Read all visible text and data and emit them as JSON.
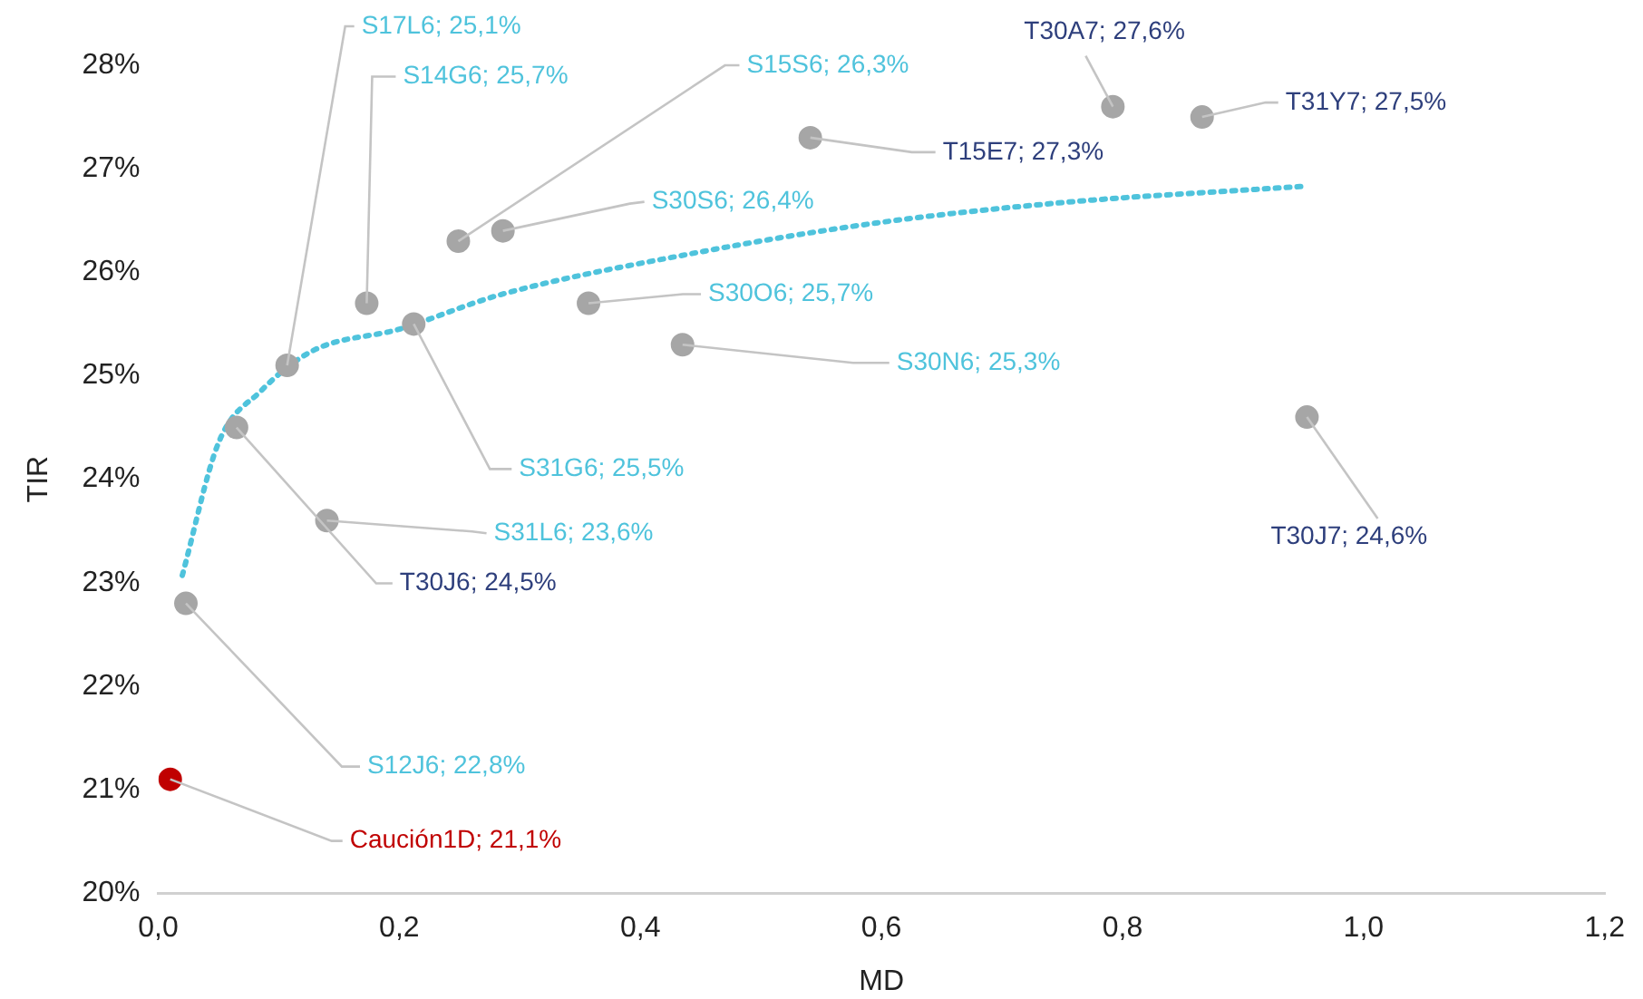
{
  "chart_data": {
    "type": "scatter",
    "xlabel": "MD",
    "ylabel": "TIR",
    "xlim": [
      0,
      1.2
    ],
    "xticks": [
      {
        "value": 0,
        "label": "0,0"
      },
      {
        "value": 0.2,
        "label": "0,2"
      },
      {
        "value": 0.4,
        "label": "0,4"
      },
      {
        "value": 0.6,
        "label": "0,6"
      },
      {
        "value": 0.8,
        "label": "0,8"
      },
      {
        "value": 1,
        "label": "1,0"
      },
      {
        "value": 1.2,
        "label": "1,2"
      }
    ],
    "ylim": [
      20,
      28
    ],
    "yticks": [
      {
        "value": 20,
        "label": "20%"
      },
      {
        "value": 21,
        "label": "21%"
      },
      {
        "value": 22,
        "label": "22%"
      },
      {
        "value": 23,
        "label": "23%"
      },
      {
        "value": 24,
        "label": "24%"
      },
      {
        "value": 25,
        "label": "25%"
      },
      {
        "value": 26,
        "label": "26%"
      },
      {
        "value": 27,
        "label": "27%"
      },
      {
        "value": 28,
        "label": "28%"
      }
    ],
    "grid": false,
    "legend": false,
    "marker": "circle",
    "series": [
      {
        "type": "scatter",
        "x": [
          0.01,
          0.023,
          0.065,
          0.14,
          0.107,
          0.173,
          0.212,
          0.249,
          0.286,
          0.357,
          0.435,
          0.541,
          0.792,
          0.866,
          0.953
        ],
        "values": [
          21.1,
          22.8,
          24.5,
          23.6,
          25.1,
          25.7,
          25.5,
          26.3,
          26.4,
          25.7,
          25.3,
          27.3,
          27.6,
          27.5,
          24.6
        ],
        "colors": [
          "#c00000",
          "#a6a6a6",
          "#a6a6a6",
          "#a6a6a6",
          "#a6a6a6",
          "#a6a6a6",
          "#a6a6a6",
          "#a6a6a6",
          "#a6a6a6",
          "#a6a6a6",
          "#a6a6a6",
          "#a6a6a6",
          "#a6a6a6",
          "#a6a6a6",
          "#a6a6a6"
        ]
      },
      {
        "type": "line",
        "color": "#4fc3dc",
        "line_style": "dotted",
        "marker": "none",
        "x": [
          0.02,
          0.05,
          0.085,
          0.128,
          0.2,
          0.283,
          0.438,
          0.592,
          0.747,
          0.95
        ],
        "values": [
          23.07,
          24.35,
          24.85,
          25.24,
          25.45,
          25.78,
          26.17,
          26.47,
          26.67,
          26.83
        ]
      }
    ],
    "annotations": [
      {
        "text": "Caución1D; 21,1%",
        "x": 0.01,
        "y": 21.1
      },
      {
        "text": "S12J6; 22,8%",
        "x": 0.023,
        "y": 22.8
      },
      {
        "text": "T30J6; 24,5%",
        "x": 0.065,
        "y": 24.5
      },
      {
        "text": "S31L6; 23,6%",
        "x": 0.14,
        "y": 23.6
      },
      {
        "text": "S17L6; 25,1%",
        "x": 0.107,
        "y": 25.1
      },
      {
        "text": "S14G6; 25,7%",
        "x": 0.173,
        "y": 25.7
      },
      {
        "text": "S31G6; 25,5%",
        "x": 0.212,
        "y": 25.5
      },
      {
        "text": "S15S6; 26,3%",
        "x": 0.249,
        "y": 26.3
      },
      {
        "text": "S30S6; 26,4%",
        "x": 0.286,
        "y": 26.4
      },
      {
        "text": "S30O6; 25,7%",
        "x": 0.357,
        "y": 25.7
      },
      {
        "text": "S30N6; 25,3%",
        "x": 0.435,
        "y": 25.3
      },
      {
        "text": "T15E7; 27,3%",
        "x": 0.541,
        "y": 27.3
      },
      {
        "text": "T30A7; 27,6%",
        "x": 0.792,
        "y": 27.6
      },
      {
        "text": "T31Y7; 27,5%",
        "x": 0.866,
        "y": 27.5
      },
      {
        "text": "T30J7; 24,6%",
        "x": 0.953,
        "y": 24.6
      }
    ]
  }
}
